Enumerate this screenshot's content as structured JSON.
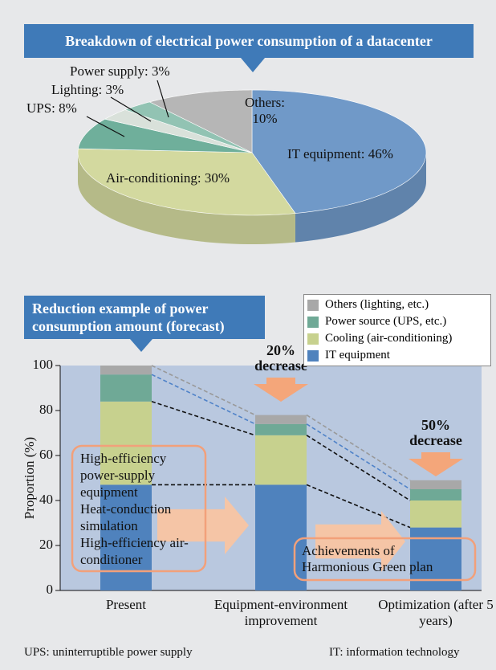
{
  "chart_data": [
    {
      "type": "pie",
      "title": "Breakdown of electrical power consumption of a datacenter",
      "values": [
        46,
        30,
        8,
        3,
        3,
        10
      ],
      "value_labels": [
        "IT equipment: 46%",
        "Air-conditioning: 30%",
        "UPS: 8%",
        "Lighting: 3%",
        "Power supply: 3%",
        "Others: 10%"
      ],
      "colors": [
        "#7099c8",
        "#d3d99f",
        "#6faf9b",
        "#d9e1da",
        "#92c3b3",
        "#b6b6b6"
      ]
    },
    {
      "type": "stacked_bar",
      "title": "Reduction example of power consumption amount (forecast)",
      "categories": [
        "Present",
        "Equipment-environment improvement",
        "Optimization (after 5 years)"
      ],
      "series": [
        {
          "name": "IT equipment",
          "color": "#4f82bd",
          "values": [
            47,
            47,
            28
          ]
        },
        {
          "name": "Cooling (air-conditioning)",
          "color": "#c7d18e",
          "values": [
            37,
            22,
            12
          ]
        },
        {
          "name": "Power source (UPS, etc.)",
          "color": "#6fa996",
          "values": [
            12,
            5,
            5
          ]
        },
        {
          "name": "Others (lighting, etc.)",
          "color": "#a8a8a8",
          "values": [
            4,
            4,
            4
          ]
        }
      ],
      "ylabel": "Proportion (%)",
      "ylim": [
        0,
        100
      ],
      "yticks": [
        0,
        20,
        40,
        60,
        80,
        100
      ],
      "decrease_labels": [
        "20% decrease",
        "50% decrease"
      ],
      "measures": [
        "High-efficiency power-supply equipment",
        "Heat-conduction simulation",
        "High-efficiency air-conditioner"
      ],
      "achievement": "Achievements of Harmonious Green plan"
    }
  ],
  "footnotes": [
    "UPS: uninterruptible power supply",
    "IT: information technology"
  ]
}
